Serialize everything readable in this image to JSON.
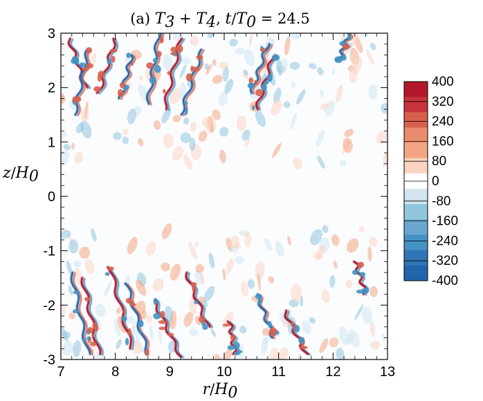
{
  "chart_data": {
    "type": "heatmap",
    "title": "(a) T3 + T4,  t/T0 = 24.5",
    "xlabel": "r/H0",
    "ylabel": "z/H0",
    "xlim": [
      7,
      13
    ],
    "ylim": [
      -3,
      3
    ],
    "x_ticks": [
      "7",
      "8",
      "9",
      "10",
      "11",
      "12",
      "13"
    ],
    "y_ticks": [
      "-3",
      "-2",
      "-1",
      "0",
      "1",
      "2",
      "3"
    ],
    "colorbar": {
      "min": -400,
      "max": 400,
      "tick_labels": [
        "400",
        "320",
        "240",
        "160",
        "80",
        "0",
        "-80",
        "-160",
        "-240",
        "-320",
        "-400"
      ],
      "colors": [
        "#b2182b",
        "#c7323c",
        "#d6604d",
        "#e98c6e",
        "#f4a582",
        "#fbd5c2",
        "#ffffff",
        "#d1e5f0",
        "#92c5de",
        "#6aa7d0",
        "#4393c3",
        "#2f75b5",
        "#2166ac"
      ]
    },
    "features": [
      {
        "x0": 7.15,
        "y0": 2.9,
        "x1": 7.45,
        "y1": 2.0,
        "sign": 1
      },
      {
        "x0": 7.5,
        "y0": 2.7,
        "x1": 7.25,
        "y1": 1.5,
        "sign": -1
      },
      {
        "x0": 8.0,
        "y0": 2.9,
        "x1": 7.7,
        "y1": 1.9,
        "sign": 1
      },
      {
        "x0": 8.3,
        "y0": 2.6,
        "x1": 8.1,
        "y1": 1.8,
        "sign": -1
      },
      {
        "x0": 8.8,
        "y0": 3.0,
        "x1": 8.6,
        "y1": 1.7,
        "sign": -1
      },
      {
        "x0": 9.2,
        "y0": 2.9,
        "x1": 8.9,
        "y1": 1.6,
        "sign": 1
      },
      {
        "x0": 9.6,
        "y0": 2.7,
        "x1": 9.2,
        "y1": 1.5,
        "sign": -1
      },
      {
        "x0": 10.8,
        "y0": 2.8,
        "x1": 10.5,
        "y1": 1.9,
        "sign": -1
      },
      {
        "x0": 10.9,
        "y0": 2.6,
        "x1": 10.6,
        "y1": 1.6,
        "sign": 1
      },
      {
        "x0": 12.3,
        "y0": 3.0,
        "x1": 12.1,
        "y1": 2.5,
        "sign": -1
      },
      {
        "x0": 7.2,
        "y0": -1.4,
        "x1": 7.5,
        "y1": -2.9,
        "sign": -1
      },
      {
        "x0": 7.4,
        "y0": -1.5,
        "x1": 7.7,
        "y1": -2.9,
        "sign": 1
      },
      {
        "x0": 7.9,
        "y0": -1.3,
        "x1": 8.3,
        "y1": -2.8,
        "sign": 1
      },
      {
        "x0": 8.2,
        "y0": -1.6,
        "x1": 8.6,
        "y1": -2.9,
        "sign": -1
      },
      {
        "x0": 8.7,
        "y0": -1.9,
        "x1": 9.2,
        "y1": -2.95,
        "sign": 1
      },
      {
        "x0": 9.3,
        "y0": -1.4,
        "x1": 9.7,
        "y1": -2.4,
        "sign": 1
      },
      {
        "x0": 10.1,
        "y0": -2.3,
        "x1": 10.2,
        "y1": -2.9,
        "sign": 1
      },
      {
        "x0": 10.6,
        "y0": -1.8,
        "x1": 10.9,
        "y1": -2.6,
        "sign": -1
      },
      {
        "x0": 11.1,
        "y0": -2.1,
        "x1": 11.5,
        "y1": -2.9,
        "sign": 1
      },
      {
        "x0": 12.4,
        "y0": -1.2,
        "x1": 12.6,
        "y1": -1.8,
        "sign": 1
      }
    ]
  }
}
